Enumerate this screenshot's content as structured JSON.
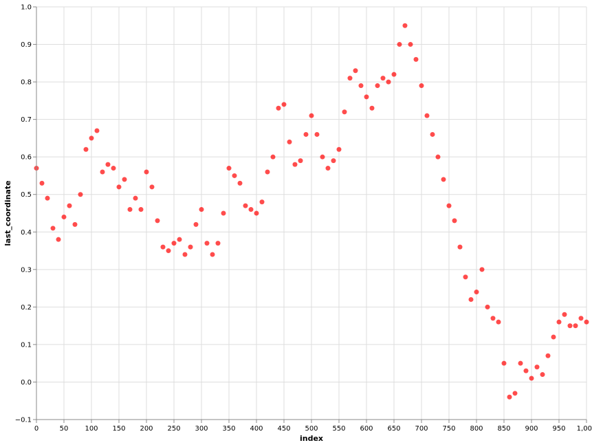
{
  "chart_data": {
    "type": "scatter",
    "xlabel": "index",
    "ylabel": "last_coordinate",
    "xlim": [
      0,
      1000
    ],
    "ylim": [
      -0.1,
      1.0
    ],
    "x_ticks": [
      0,
      50,
      100,
      150,
      200,
      250,
      300,
      350,
      400,
      450,
      500,
      550,
      600,
      650,
      700,
      750,
      800,
      850,
      900,
      950,
      1000
    ],
    "x_tick_labels": [
      "0",
      "50",
      "100",
      "150",
      "200",
      "250",
      "300",
      "350",
      "400",
      "450",
      "500",
      "550",
      "600",
      "650",
      "700",
      "750",
      "800",
      "850",
      "900",
      "950",
      "1,000"
    ],
    "y_ticks": [
      -0.1,
      0.0,
      0.1,
      0.2,
      0.3,
      0.4,
      0.5,
      0.6,
      0.7,
      0.8,
      0.9,
      1.0
    ],
    "y_tick_labels": [
      "−0.1",
      "0.0",
      "0.1",
      "0.2",
      "0.3",
      "0.4",
      "0.5",
      "0.6",
      "0.7",
      "0.8",
      "0.9",
      "1.0"
    ],
    "grid": true,
    "point_color": "#ff0000",
    "x": [
      0,
      10,
      20,
      30,
      40,
      50,
      60,
      70,
      80,
      90,
      100,
      110,
      120,
      130,
      140,
      150,
      160,
      170,
      180,
      190,
      200,
      210,
      220,
      230,
      240,
      250,
      260,
      270,
      280,
      290,
      300,
      310,
      320,
      330,
      340,
      350,
      360,
      370,
      380,
      390,
      400,
      410,
      420,
      430,
      440,
      450,
      460,
      470,
      480,
      490,
      500,
      510,
      520,
      530,
      540,
      550,
      560,
      570,
      580,
      590,
      600,
      610,
      620,
      630,
      640,
      650,
      660,
      670,
      680,
      690,
      700,
      710,
      720,
      730,
      740,
      750,
      760,
      770,
      780,
      790,
      800,
      810,
      820,
      830,
      840,
      850,
      860,
      870,
      880,
      890,
      900,
      910,
      920,
      930,
      940,
      950,
      960,
      970,
      980,
      990,
      1000
    ],
    "y": [
      0.57,
      0.53,
      0.49,
      0.41,
      0.38,
      0.44,
      0.47,
      0.42,
      0.5,
      0.62,
      0.65,
      0.67,
      0.56,
      0.58,
      0.57,
      0.52,
      0.54,
      0.46,
      0.49,
      0.46,
      0.56,
      0.52,
      0.43,
      0.36,
      0.35,
      0.37,
      0.38,
      0.34,
      0.36,
      0.42,
      0.46,
      0.37,
      0.34,
      0.37,
      0.45,
      0.57,
      0.55,
      0.53,
      0.47,
      0.46,
      0.45,
      0.48,
      0.56,
      0.6,
      0.73,
      0.74,
      0.64,
      0.58,
      0.59,
      0.66,
      0.71,
      0.66,
      0.6,
      0.57,
      0.59,
      0.62,
      0.72,
      0.81,
      0.83,
      0.79,
      0.76,
      0.73,
      0.79,
      0.81,
      0.8,
      0.82,
      0.9,
      0.95,
      0.9,
      0.86,
      0.79,
      0.71,
      0.66,
      0.6,
      0.54,
      0.47,
      0.43,
      0.36,
      0.28,
      0.22,
      0.24,
      0.3,
      0.2,
      0.17,
      0.16,
      0.05,
      -0.04,
      -0.03,
      0.05,
      0.03,
      0.01,
      0.04,
      0.02,
      0.07,
      0.12,
      0.16,
      0.18,
      0.15,
      0.15,
      0.17,
      0.16
    ]
  }
}
